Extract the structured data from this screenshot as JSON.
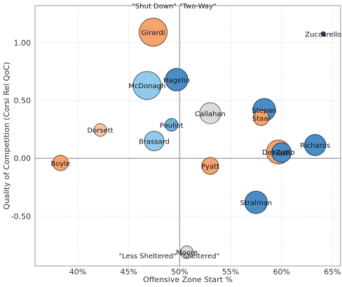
{
  "chart_data": {
    "type": "scatter",
    "title": "",
    "xlabel": "Offensive Zone Start %",
    "ylabel": "Quality of Competition (Corsi Rel QoC)",
    "xlim": [
      0.358,
      0.658
    ],
    "ylim": [
      -0.93,
      1.32
    ],
    "x_ticks": [
      0.4,
      0.45,
      0.5,
      0.55,
      0.6,
      0.65
    ],
    "x_tick_labels": [
      "40%",
      "45%",
      "50%",
      "55%",
      "60%",
      "65%"
    ],
    "y_ticks": [
      1.0,
      0.5,
      0.0,
      -0.5
    ],
    "y_tick_labels": [
      "1.00",
      "0.50",
      "0.00",
      "-0.50"
    ],
    "grid": true,
    "reference_lines": {
      "x": 0.5,
      "y": 0.0
    },
    "quadrant_labels": {
      "top_left": "\"Shut Down\"",
      "top_right": "\"Two-Way\"",
      "bottom_left": "\"Less Sheltered\"",
      "bottom_right": "\"Sheltered\""
    },
    "colors": {
      "orange": "#f6a46f",
      "light_orange": "#f9c7a8",
      "dark_blue": "#4a8dc6",
      "blue": "#6fb0da",
      "light_blue": "#92cbea",
      "gray": "#dcdcdc",
      "navy": "#2c4d75"
    },
    "points": [
      {
        "name": "Girardi",
        "x": 0.474,
        "y": 1.09,
        "size": 20,
        "color": "orange"
      },
      {
        "name": "Zuccarello",
        "x": 0.641,
        "y": 1.075,
        "size": 3,
        "color": "navy"
      },
      {
        "name": "Hagelin",
        "x": 0.497,
        "y": 0.68,
        "size": 16,
        "color": "dark_blue"
      },
      {
        "name": "McDonagh",
        "x": 0.468,
        "y": 0.63,
        "size": 20,
        "color": "light_blue"
      },
      {
        "name": "Stepan",
        "x": 0.583,
        "y": 0.42,
        "size": 16,
        "color": "dark_blue"
      },
      {
        "name": "Callahan",
        "x": 0.53,
        "y": 0.39,
        "size": 15,
        "color": "gray"
      },
      {
        "name": "Staal",
        "x": 0.58,
        "y": 0.35,
        "size": 11,
        "color": "orange"
      },
      {
        "name": "Pouliot",
        "x": 0.492,
        "y": 0.29,
        "size": 9,
        "color": "blue"
      },
      {
        "name": "Dorsett",
        "x": 0.422,
        "y": 0.245,
        "size": 9,
        "color": "light_orange"
      },
      {
        "name": "Brassard",
        "x": 0.475,
        "y": 0.15,
        "size": 14,
        "color": "light_blue"
      },
      {
        "name": "Richards",
        "x": 0.633,
        "y": 0.115,
        "size": 15,
        "color": "dark_blue"
      },
      {
        "name": "Nash",
        "x": 0.6,
        "y": 0.05,
        "size": 14,
        "color": "dark_blue"
      },
      {
        "name": "Del Zotto",
        "x": 0.597,
        "y": 0.055,
        "size": 17,
        "color": "orange"
      },
      {
        "name": "Boyle",
        "x": 0.383,
        "y": -0.04,
        "size": 11,
        "color": "orange"
      },
      {
        "name": "Pyatt",
        "x": 0.53,
        "y": -0.065,
        "size": 12,
        "color": "orange"
      },
      {
        "name": "Stralman",
        "x": 0.575,
        "y": -0.38,
        "size": 16,
        "color": "dark_blue"
      },
      {
        "name": "Moore",
        "x": 0.507,
        "y": -0.81,
        "size": 9,
        "color": "gray"
      }
    ]
  }
}
